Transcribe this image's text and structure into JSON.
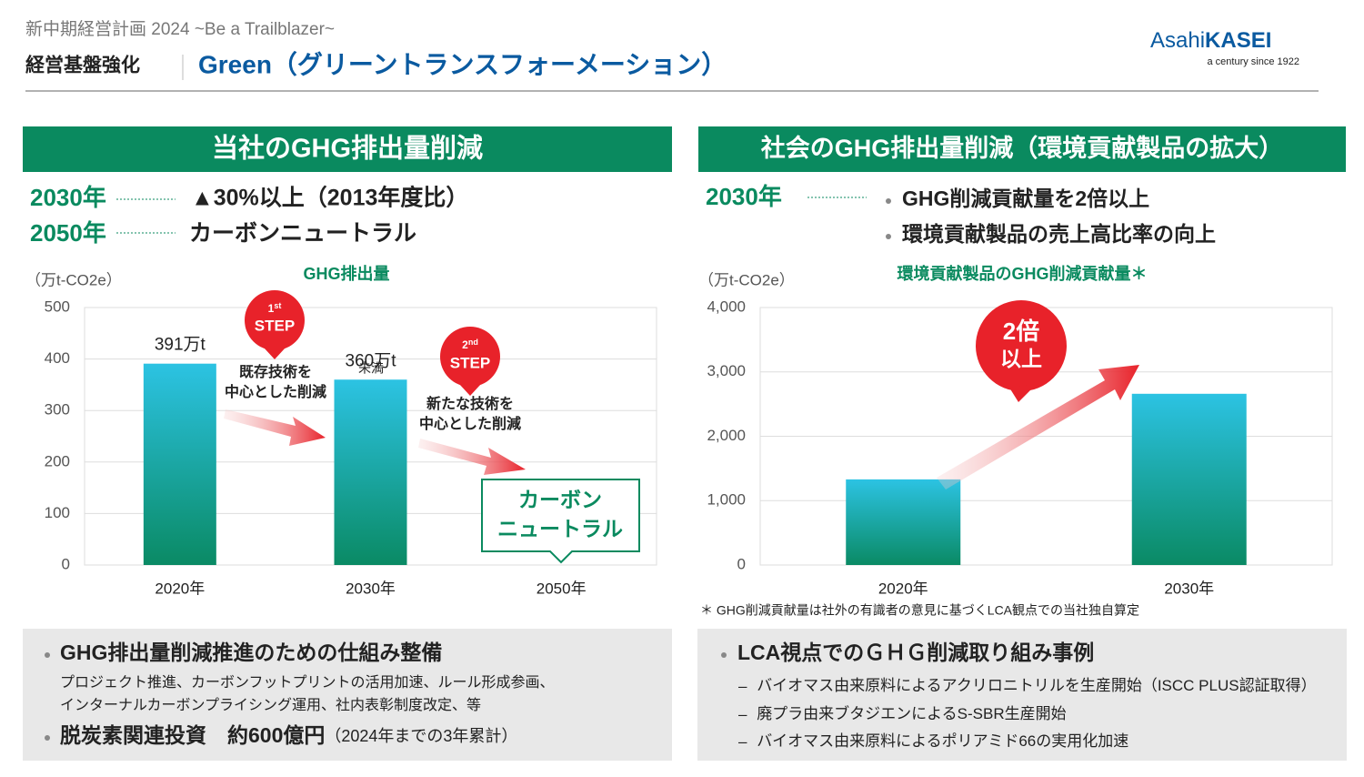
{
  "header": {
    "subtitle": "新中期経営計画 2024 ~Be a Trailblazer~",
    "section": "経営基盤強化",
    "title": "Green（グリーントランスフォーメーション）",
    "logo_a": "Asahi",
    "logo_b": "KASEI",
    "logo_tag": "a century since 1922"
  },
  "left": {
    "heading": "当社のGHG排出量削減",
    "targets": [
      {
        "year": "2030年",
        "text": "▲30%以上（2013年度比）"
      },
      {
        "year": "2050年",
        "text": "カーボンニュートラル"
      }
    ],
    "step1": {
      "num": "1",
      "sup": "st",
      "word": "STEP",
      "lines": [
        "既存技術を",
        "中心とした削減"
      ]
    },
    "step2": {
      "num": "2",
      "sup": "nd",
      "word": "STEP",
      "lines": [
        "新たな技術を",
        "中心とした削減"
      ]
    },
    "under_note": "未満",
    "neutral": [
      "カーボン",
      "ニュートラル"
    ]
  },
  "right": {
    "heading": "社会のGHG排出量削減（環境貢献製品の拡大）",
    "year": "2030年",
    "bullets": [
      "GHG削減貢献量を2倍以上",
      "環境貢献製品の売上高比率の向上"
    ],
    "badge": [
      "2倍",
      "以上"
    ],
    "footnote": "＊ GHG削減貢献量は社外の有識者の意見に基づくLCA観点での当社独自算定"
  },
  "chart_data": [
    {
      "type": "bar",
      "title": "GHG排出量",
      "y_label": "（万t-CO2e）",
      "categories": [
        "2020年",
        "2030年",
        "2050年"
      ],
      "values": [
        391,
        360,
        null
      ],
      "value_labels": [
        "391万t",
        "360万t",
        null
      ],
      "ylim": [
        0,
        500
      ],
      "yticks": [
        0,
        100,
        200,
        300,
        400,
        500
      ],
      "grid": true,
      "color": [
        "#2cc3e3",
        "#0a8a64"
      ]
    },
    {
      "type": "bar",
      "title": "環境貢献製品のGHG削減貢献量＊",
      "y_label": "（万t-CO2e）",
      "categories": [
        "2020年",
        "2030年"
      ],
      "values": [
        1330,
        2660
      ],
      "ylim": [
        0,
        4000
      ],
      "yticks": [
        0,
        {
          "value": 1000,
          "label": "1,000"
        },
        {
          "value": 2000,
          "label": "2,000"
        },
        {
          "value": 3000,
          "label": "3,000"
        },
        {
          "value": 4000,
          "label": "4,000"
        }
      ],
      "grid": true,
      "color": [
        "#2cc3e3",
        "#0a8a64"
      ]
    }
  ],
  "left_box": {
    "bullet1": "GHG排出量削減推進のための仕組み整備",
    "sub": [
      "プロジェクト推進、カーボンフットプリントの活用加速、ルール形成参画、",
      "インターナルカーボンプライシング運用、社内表彰制度改定、等"
    ],
    "bullet2": "脱炭素関連投資　約600億円",
    "bullet2_note": "（2024年までの3年累計）"
  },
  "right_box": {
    "bullet": "LCA視点でのＧＨＧ削減取り組み事例",
    "items": [
      "バイオマス由来原料によるアクリロニトリルを生産開始（ISCC PLUS認証取得）",
      "廃プラ由来ブタジエンによるS-SBR生産開始",
      "バイオマス由来原料によるポリアミド66の実用化加速"
    ]
  }
}
